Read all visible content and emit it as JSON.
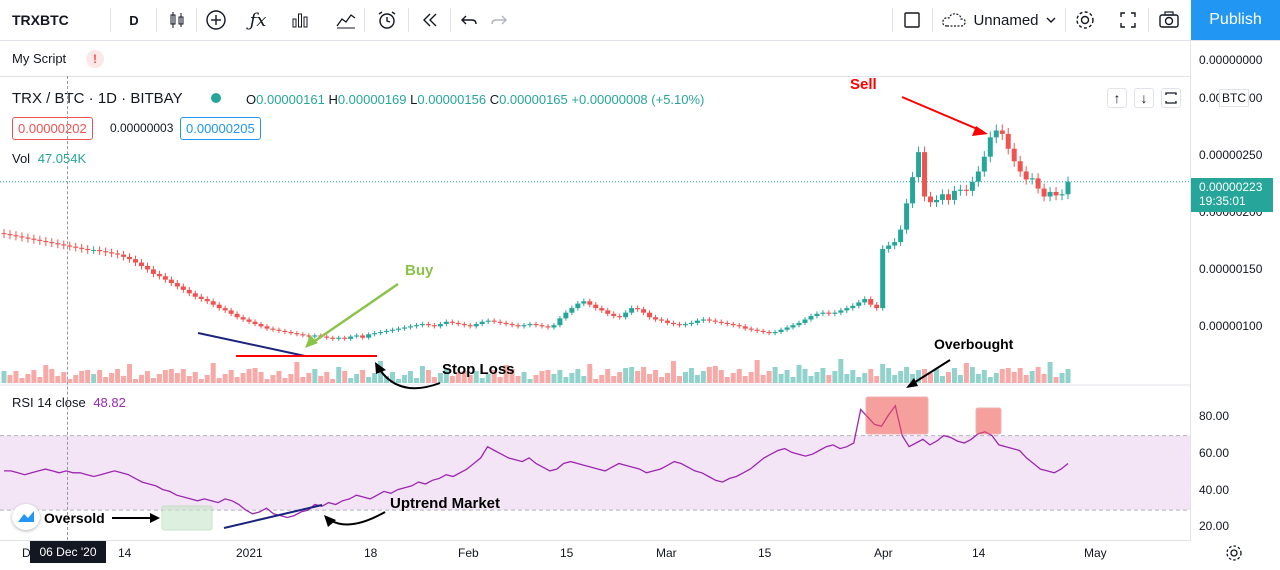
{
  "toolbar": {
    "symbol": "TRXBTC",
    "interval": "D",
    "layout_name": "Unnamed",
    "publish_label": "Publish"
  },
  "script": {
    "label": "My Script",
    "warning": "!"
  },
  "instrument": {
    "title": "TRX / BTC · 1D · BITBAY",
    "o_label": "O",
    "o_value": "0.00000161",
    "h_label": "H",
    "h_value": "0.00000169",
    "l_label": "L",
    "l_value": "0.00000156",
    "c_label": "C",
    "c_value": "0.00000165",
    "change": "+0.00000008 (+5.10%)",
    "bid": "0.00000202",
    "spread": "0.00000003",
    "ask": "0.00000205"
  },
  "volume": {
    "label": "Vol",
    "value": "47.054K"
  },
  "rsi": {
    "label": "RSI 14 close",
    "value": "48.82"
  },
  "price_axis": {
    "currency": "BTC",
    "ticks": [
      "0.00000000",
      "0.00000300",
      "0.00000250",
      "0.00000200",
      "0.00000150",
      "0.00000100"
    ],
    "last_price": "0.00000223",
    "countdown": "19:35:01"
  },
  "rsi_axis": {
    "ticks": [
      "80.00",
      "60.00",
      "40.00",
      "20.00"
    ]
  },
  "time_axis": {
    "ticks": [
      "D",
      "14",
      "2021",
      "18",
      "Feb",
      "15",
      "Mar",
      "15",
      "Apr",
      "14",
      "May"
    ],
    "crosshair_date": "06 Dec '20"
  },
  "annotations": {
    "sell": "Sell",
    "buy": "Buy",
    "stop_loss": "Stop Loss",
    "overbought": "Overbought",
    "oversold": "Oversold",
    "uptrend": "Uptrend Market"
  },
  "colors": {
    "up": "#26a69a",
    "down": "#ef5350",
    "accent": "#2196f3",
    "rsi_line": "#9c27b0"
  },
  "chart_data": [
    {
      "type": "candlestick",
      "title": "TRX / BTC · 1D · BITBAY",
      "ylim": [
        5.5e-07,
        3.15e-06
      ],
      "values_close": [
        1.77e-06,
        1.76e-06,
        1.75e-06,
        1.74e-06,
        1.73e-06,
        1.72e-06,
        1.71e-06,
        1.7e-06,
        1.69e-06,
        1.68e-06,
        1.67e-06,
        1.66e-06,
        1.65e-06,
        1.64e-06,
        1.63e-06,
        1.63e-06,
        1.62e-06,
        1.61e-06,
        1.6e-06,
        1.59e-06,
        1.57e-06,
        1.55e-06,
        1.52e-06,
        1.49e-06,
        1.46e-06,
        1.42e-06,
        1.4e-06,
        1.37e-06,
        1.34e-06,
        1.31e-06,
        1.28e-06,
        1.25e-06,
        1.22e-06,
        1.2e-06,
        1.18e-06,
        1.15e-06,
        1.12e-06,
        1.1e-06,
        1.07e-06,
        1.04e-06,
        1.02e-06,
        1e-06,
        9.8e-07,
        9.6e-07,
        9.4e-07,
        9.3e-07,
        9.2e-07,
        9.1e-07,
        9e-07,
        8.9e-07,
        8.8e-07,
        8.7e-07,
        8.8e-07,
        8.7e-07,
        8.6e-07,
        8.5e-07,
        8.6e-07,
        8.5e-07,
        8.7e-07,
        8.8e-07,
        8.6e-07,
        8.9e-07,
        9e-07,
        9.1e-07,
        9.2e-07,
        9.3e-07,
        9.4e-07,
        9.5e-07,
        9.6e-07,
        9.7e-07,
        9.8e-07,
        9.7e-07,
        9.6e-07,
        9.8e-07,
        1e-06,
        9.9e-07,
        9.8e-07,
        9.7e-07,
        9.6e-07,
        9.8e-07,
        1e-06,
        1.01e-06,
        1e-06,
        9.9e-07,
        9.8e-07,
        9.7e-07,
        9.6e-07,
        9.7e-07,
        9.8e-07,
        9.7e-07,
        9.6e-07,
        9.5e-07,
        9.7e-07,
        1.03e-06,
        1.08e-06,
        1.12e-06,
        1.16e-06,
        1.18e-06,
        1.15e-06,
        1.12e-06,
        1.1e-06,
        1.07e-06,
        1.05e-06,
        1.04e-06,
        1.08e-06,
        1.12e-06,
        1.11e-06,
        1.08e-06,
        1.04e-06,
        1.02e-06,
        1.01e-06,
        9.9e-07,
        9.8e-07,
        9.7e-07,
        9.8e-07,
        9.9e-07,
        1.01e-06,
        1.02e-06,
        1.01e-06,
        1e-06,
        9.9e-07,
        9.8e-07,
        9.7e-07,
        9.6e-07,
        9.4e-07,
        9.3e-07,
        9.2e-07,
        9.1e-07,
        9e-07,
        9.1e-07,
        9.3e-07,
        9.5e-07,
        9.7e-07,
        9.9e-07,
        1.02e-06,
        1.05e-06,
        1.07e-06,
        1.08e-06,
        1.07e-06,
        1.08e-06,
        1.1e-06,
        1.12e-06,
        1.14e-06,
        1.17e-06,
        1.2e-06,
        1.15e-06,
        1.12e-06,
        1.64e-06,
        1.67e-06,
        1.7e-06,
        1.81e-06,
        2.04e-06,
        2.27e-06,
        2.49e-06,
        2.1e-06,
        2.05e-06,
        2.07e-06,
        2.12e-06,
        2.07e-06,
        2.15e-06,
        2.16e-06,
        2.15e-06,
        2.23e-06,
        2.32e-06,
        2.45e-06,
        2.62e-06,
        2.68e-06,
        2.65e-06,
        2.52e-06,
        2.41e-06,
        2.32e-06,
        2.25e-06,
        2.26e-06,
        2.17e-06,
        2.1e-06,
        2.14e-06,
        2.11e-06,
        2.12e-06,
        2.23e-06
      ]
    },
    {
      "type": "line",
      "title": "RSI 14 close",
      "ylim": [
        15,
        95
      ],
      "values": [
        51,
        51,
        50,
        49,
        50,
        51,
        52,
        51,
        50,
        51,
        50,
        50,
        49,
        48,
        49,
        50,
        51,
        50,
        49,
        47,
        45,
        44,
        43,
        41,
        40,
        38,
        37,
        36,
        35,
        36,
        35,
        34,
        36,
        35,
        33,
        30,
        28,
        29,
        31,
        28,
        27,
        26,
        27,
        29,
        30,
        33,
        32,
        34,
        33,
        35,
        36,
        38,
        37,
        36,
        38,
        40,
        39,
        41,
        42,
        43,
        45,
        44,
        46,
        47,
        49,
        48,
        50,
        52,
        55,
        58,
        64,
        62,
        60,
        58,
        57,
        56,
        58,
        55,
        53,
        51,
        52,
        55,
        56,
        55,
        54,
        53,
        52,
        51,
        53,
        55,
        54,
        53,
        52,
        50,
        51,
        52,
        54,
        56,
        55,
        53,
        51,
        50,
        48,
        46,
        45,
        47,
        48,
        50,
        52,
        55,
        58,
        60,
        62,
        63,
        61,
        60,
        59,
        60,
        62,
        64,
        65,
        63,
        64,
        66,
        84,
        80,
        76,
        75,
        81,
        86,
        70,
        64,
        66,
        68,
        65,
        67,
        70,
        69,
        67,
        66,
        68,
        71,
        72,
        70,
        65,
        64,
        63,
        62,
        58,
        55,
        52,
        51,
        50,
        52,
        55
      ]
    }
  ]
}
